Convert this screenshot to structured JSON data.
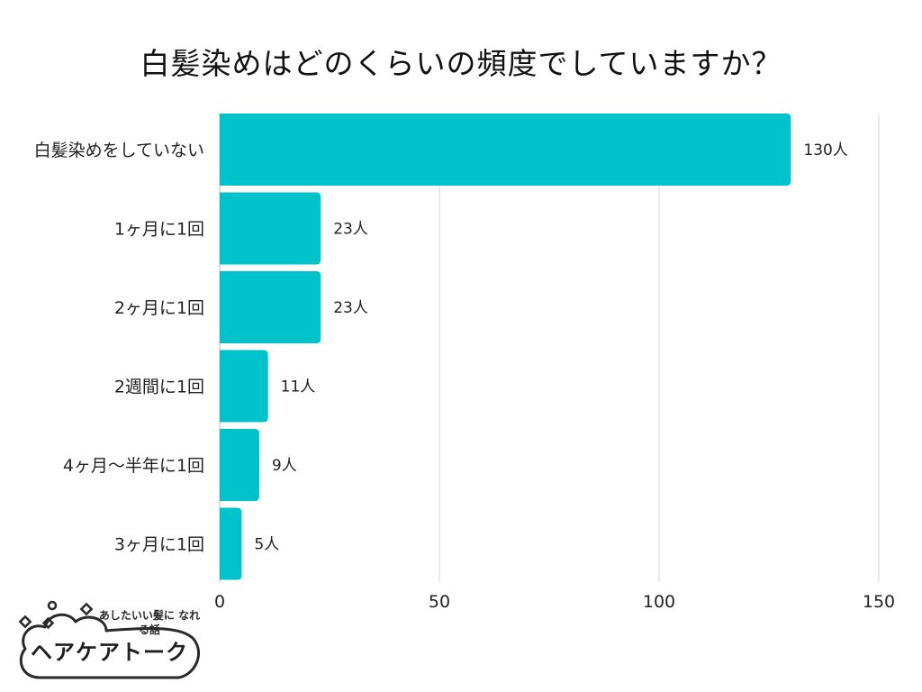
{
  "chart_data": {
    "type": "bar",
    "orientation": "horizontal",
    "title": "白髪染めはどのくらいの頻度でしていますか？",
    "categories": [
      "白髪染めをしていない",
      "1ヶ月に1回",
      "2ヶ月に1回",
      "2週間に1回",
      "4ヶ月〜半年に1回",
      "3ヶ月に1回"
    ],
    "values": [
      130,
      23,
      23,
      11,
      9,
      5
    ],
    "value_labels": [
      "130人",
      "23人",
      "23人",
      "11人",
      "9人",
      "5人"
    ],
    "xlim": [
      0,
      150
    ],
    "xticks": [
      0,
      50,
      100,
      150
    ],
    "xtick_labels": [
      "0",
      "50",
      "100",
      "150"
    ],
    "grid": "vertical",
    "bar_color": "#00c2cb"
  },
  "logo": {
    "tagline": "あしたいい髪に なれる話",
    "name": "ヘアケアトーク"
  }
}
